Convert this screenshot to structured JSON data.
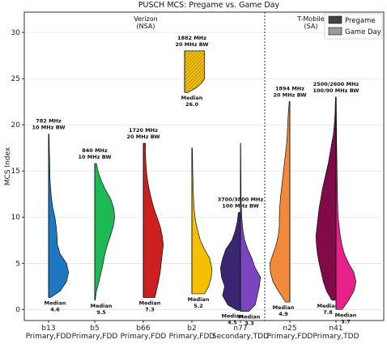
{
  "chart_data": {
    "type": "violin-split",
    "title": "PUSCH MCS: Pregame vs. Game Day",
    "ylabel": "MCS Index",
    "xlabel": "",
    "ylim": [
      -1.2,
      32.2
    ],
    "yticks": [
      0,
      5,
      10,
      15,
      20,
      25,
      30
    ],
    "grid": "y",
    "legend": {
      "placement": "top-right",
      "entries": [
        {
          "name": "Pregame",
          "color": "#4a4a4a",
          "hatch": true
        },
        {
          "name": "Game Day",
          "color": "#9a9a9a",
          "hatch": false
        }
      ]
    },
    "groups": [
      {
        "label": "Verizon",
        "sublabel": "(NSA)"
      },
      {
        "label": "T-Mobile",
        "sublabel": "(SA)"
      }
    ],
    "categories": [
      {
        "name": "b13",
        "sub": "Primary,FDD"
      },
      {
        "name": "b5",
        "sub": "Primary,FDD"
      },
      {
        "name": "b66",
        "sub": "Primary,FDD"
      },
      {
        "name": "b2",
        "sub": "Primary,FDD"
      },
      {
        "name": "n77",
        "sub": "Secondary,TDD"
      },
      {
        "name": "n25",
        "sub": "Primary,FDD"
      },
      {
        "name": "n41",
        "sub": "Primary,TDD"
      }
    ],
    "violins": [
      {
        "cat": 0,
        "side": "right",
        "color": "#1f77c4",
        "hatch": false,
        "min": 1.3,
        "max": 19.0,
        "median_label": "Median",
        "median": "4.6",
        "band_label": [
          "782 MHz",
          "10 MHz BW"
        ],
        "density": [
          [
            1.3,
            0.1
          ],
          [
            2,
            0.55
          ],
          [
            3,
            0.85
          ],
          [
            4,
            0.95
          ],
          [
            5,
            0.85
          ],
          [
            6,
            0.55
          ],
          [
            7,
            0.42
          ],
          [
            8,
            0.4
          ],
          [
            9,
            0.36
          ],
          [
            10,
            0.3
          ],
          [
            11,
            0.2
          ],
          [
            12,
            0.14
          ],
          [
            13,
            0.1
          ],
          [
            14,
            0.07
          ],
          [
            16,
            0.05
          ],
          [
            19,
            0.02
          ]
        ]
      },
      {
        "cat": 1,
        "side": "right",
        "color": "#1db954",
        "hatch": false,
        "min": 1.0,
        "max": 15.8,
        "median_label": "Median",
        "median": "9.5",
        "band_label": [
          "840 MHz",
          "10 MHz BW"
        ],
        "density": [
          [
            1,
            0.02
          ],
          [
            2,
            0.08
          ],
          [
            3,
            0.2
          ],
          [
            4,
            0.3
          ],
          [
            5,
            0.4
          ],
          [
            6,
            0.48
          ],
          [
            7,
            0.6
          ],
          [
            8,
            0.75
          ],
          [
            9,
            0.88
          ],
          [
            10,
            0.95
          ],
          [
            11,
            0.9
          ],
          [
            12,
            0.75
          ],
          [
            13,
            0.5
          ],
          [
            14,
            0.3
          ],
          [
            15,
            0.15
          ],
          [
            15.8,
            0.08
          ]
        ]
      },
      {
        "cat": 2,
        "side": "right",
        "color": "#cc1f1f",
        "hatch": false,
        "min": 1.3,
        "max": 18.0,
        "median_label": "Median",
        "median": "7.3",
        "band_label": [
          "1720 MHz",
          "20 MHz BW"
        ],
        "density": [
          [
            1.3,
            0.55
          ],
          [
            2,
            0.62
          ],
          [
            3,
            0.72
          ],
          [
            4,
            0.8
          ],
          [
            5,
            0.85
          ],
          [
            6,
            0.9
          ],
          [
            7,
            0.95
          ],
          [
            8,
            0.9
          ],
          [
            9,
            0.8
          ],
          [
            10,
            0.65
          ],
          [
            11,
            0.5
          ],
          [
            12,
            0.38
          ],
          [
            13,
            0.28
          ],
          [
            14,
            0.2
          ],
          [
            15,
            0.15
          ],
          [
            16,
            0.12
          ],
          [
            17,
            0.1
          ],
          [
            18,
            0.1
          ]
        ]
      },
      {
        "cat": 3,
        "side": "right",
        "color": "#f5c000",
        "hatch": false,
        "min": 1.7,
        "max": 17.5,
        "median_label": "Median",
        "median": "5.2",
        "band_label": [],
        "density": [
          [
            1.7,
            0.6
          ],
          [
            2.5,
            0.8
          ],
          [
            3.5,
            0.92
          ],
          [
            4.5,
            0.95
          ],
          [
            5.5,
            0.85
          ],
          [
            6.5,
            0.6
          ],
          [
            7.5,
            0.4
          ],
          [
            8.5,
            0.28
          ],
          [
            9.5,
            0.18
          ],
          [
            10.5,
            0.12
          ],
          [
            12,
            0.08
          ],
          [
            14,
            0.05
          ],
          [
            17.5,
            0.02
          ]
        ]
      },
      {
        "cat": 3,
        "side": "right",
        "color": "#f5c000",
        "hatch": true,
        "min": 23.5,
        "max": 28.0,
        "median_label": "Median",
        "median": "26.0",
        "band_label": [
          "1882 MHz",
          "20 MHz BW"
        ],
        "offset": 0.1,
        "density": [
          [
            23.5,
            0.15
          ],
          [
            24,
            0.55
          ],
          [
            24.5,
            0.8
          ],
          [
            25,
            0.95
          ],
          [
            26,
            0.95
          ],
          [
            27,
            0.95
          ],
          [
            28,
            0.95
          ]
        ]
      },
      {
        "cat": 4,
        "side": "left",
        "color": "#3f2a7a",
        "hatch": true,
        "min": -0.1,
        "max": 10.5,
        "median_label": "Median",
        "median": "4.5",
        "band_label": [
          "3700/3800 MHz",
          "100 MHz BW"
        ],
        "density": [
          [
            -0.1,
            0.15
          ],
          [
            0.5,
            0.6
          ],
          [
            1.5,
            0.85
          ],
          [
            2.5,
            0.75
          ],
          [
            3.5,
            0.9
          ],
          [
            4.5,
            0.95
          ],
          [
            5.5,
            0.85
          ],
          [
            6.5,
            0.7
          ],
          [
            7.5,
            0.4
          ],
          [
            8.5,
            0.25
          ],
          [
            9.5,
            0.15
          ],
          [
            10.5,
            0.1
          ]
        ]
      },
      {
        "cat": 4,
        "side": "right",
        "color": "#7b45c2",
        "hatch": false,
        "min": -0.2,
        "max": 18.0,
        "median_label": "Median",
        "median": "3.3",
        "band_label": [],
        "density": [
          [
            -0.2,
            0.4
          ],
          [
            0.5,
            0.7
          ],
          [
            1.5,
            0.8
          ],
          [
            2.5,
            0.9
          ],
          [
            3.5,
            0.95
          ],
          [
            4.5,
            0.7
          ],
          [
            5.5,
            0.55
          ],
          [
            6.5,
            0.35
          ],
          [
            7.5,
            0.2
          ],
          [
            8.5,
            0.12
          ],
          [
            10,
            0.06
          ],
          [
            12,
            0.03
          ],
          [
            15,
            0.02
          ],
          [
            18,
            0.01
          ]
        ]
      },
      {
        "cat": 5,
        "side": "left",
        "color": "#f28a3c",
        "hatch": false,
        "min": 0.8,
        "max": 22.5,
        "median_label": "Median",
        "median": "4.9",
        "band_label": [
          "1894 MHz",
          "20 MHz BW"
        ],
        "density": [
          [
            0.8,
            0.2
          ],
          [
            2,
            0.55
          ],
          [
            3,
            0.8
          ],
          [
            4,
            0.92
          ],
          [
            5,
            0.95
          ],
          [
            6,
            0.8
          ],
          [
            7,
            0.65
          ],
          [
            8,
            0.55
          ],
          [
            9,
            0.5
          ],
          [
            10,
            0.5
          ],
          [
            11,
            0.48
          ],
          [
            12,
            0.45
          ],
          [
            13,
            0.4
          ],
          [
            14,
            0.35
          ],
          [
            15,
            0.3
          ],
          [
            16,
            0.25
          ],
          [
            17,
            0.2
          ],
          [
            18,
            0.15
          ],
          [
            19,
            0.12
          ],
          [
            20,
            0.1
          ],
          [
            21,
            0.08
          ],
          [
            22.5,
            0.03
          ]
        ]
      },
      {
        "cat": 6,
        "side": "left",
        "color": "#8b0b4e",
        "hatch": true,
        "min": 1.0,
        "max": 23.0,
        "median_label": "Median",
        "median": "7.8",
        "band_label": [
          "2500/2600 MHz",
          "100/90 MHz BW"
        ],
        "density": [
          [
            1,
            0.2
          ],
          [
            2,
            0.45
          ],
          [
            3,
            0.6
          ],
          [
            4,
            0.7
          ],
          [
            5,
            0.8
          ],
          [
            6,
            0.88
          ],
          [
            7,
            0.93
          ],
          [
            8,
            0.95
          ],
          [
            9,
            0.9
          ],
          [
            10,
            0.85
          ],
          [
            11,
            0.8
          ],
          [
            12,
            0.72
          ],
          [
            13,
            0.65
          ],
          [
            14,
            0.55
          ],
          [
            15,
            0.45
          ],
          [
            16,
            0.35
          ],
          [
            17,
            0.28
          ],
          [
            18,
            0.2
          ],
          [
            19,
            0.12
          ],
          [
            20,
            0.08
          ],
          [
            21,
            0.05
          ],
          [
            23,
            0.02
          ]
        ]
      },
      {
        "cat": 6,
        "side": "right",
        "color": "#e8208a",
        "hatch": false,
        "min": 0.0,
        "max": 23.0,
        "median_label": "Median",
        "median": "3.7",
        "band_label": [],
        "density": [
          [
            0,
            0.3
          ],
          [
            1,
            0.6
          ],
          [
            2,
            0.85
          ],
          [
            3,
            0.95
          ],
          [
            4,
            0.85
          ],
          [
            5,
            0.6
          ],
          [
            6,
            0.4
          ],
          [
            7,
            0.28
          ],
          [
            8,
            0.2
          ],
          [
            9,
            0.15
          ],
          [
            10,
            0.1
          ],
          [
            12,
            0.07
          ],
          [
            15,
            0.05
          ],
          [
            18,
            0.03
          ],
          [
            23,
            0.01
          ]
        ]
      }
    ]
  }
}
